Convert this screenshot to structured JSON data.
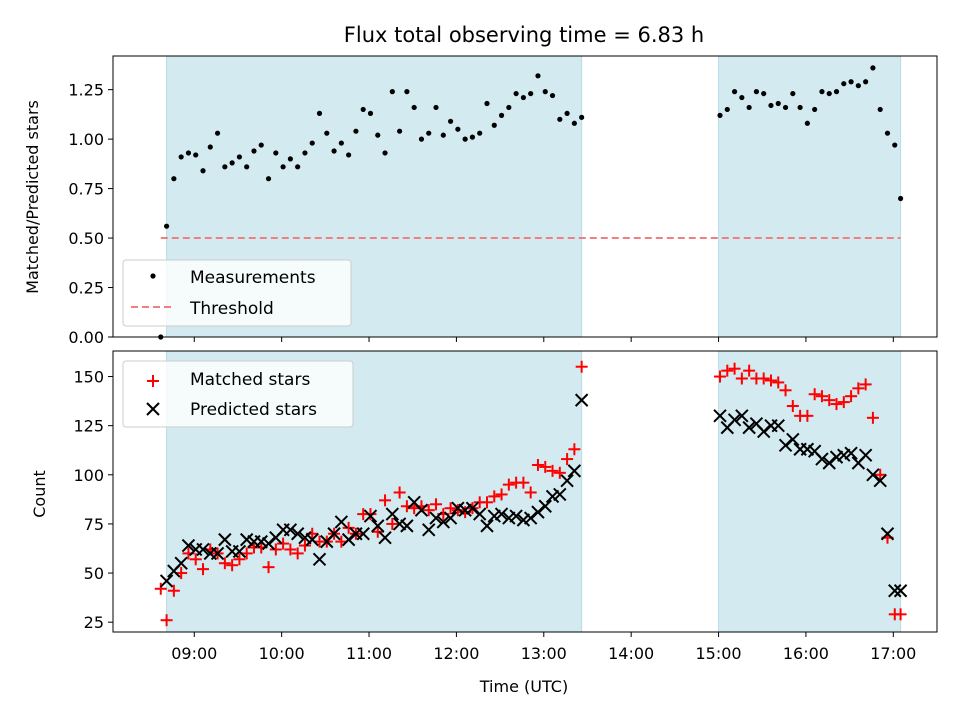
{
  "chart_data": {
    "title": "Flux total observing time = 6.83 h",
    "xlabel": "Time (UTC)",
    "x_ticks": [
      "09:00",
      "10:00",
      "11:00",
      "12:00",
      "13:00",
      "14:00",
      "15:00",
      "16:00",
      "17:00"
    ],
    "x_range_hours": [
      8.07,
      17.5
    ],
    "observing_windows": [
      {
        "start": "08:41",
        "end": "13:26"
      },
      {
        "start": "15:00",
        "end": "17:05"
      }
    ],
    "window_color": "#d3eaf0",
    "panels": [
      {
        "type": "scatter",
        "ylabel": "Matched/Predicted stars",
        "ylim": [
          0,
          1.42
        ],
        "yticks": [
          "0.00",
          "0.25",
          "0.50",
          "0.75",
          "1.00",
          "1.25"
        ],
        "threshold": {
          "y": 0.5,
          "x_start": "08:37",
          "x_end": "17:05",
          "color": "#f08080",
          "name": "Threshold"
        },
        "legend": {
          "placement": "lower-left",
          "entries": [
            "Measurements",
            "Threshold"
          ]
        },
        "series": [
          {
            "name": "Measurements",
            "color": "#000000",
            "marker": "dot",
            "x": [
              "08:37",
              "08:41",
              "08:46",
              "08:51",
              "08:56",
              "09:01",
              "09:06",
              "09:11",
              "09:16",
              "09:21",
              "09:26",
              "09:31",
              "09:36",
              "09:41",
              "09:46",
              "09:51",
              "09:56",
              "10:01",
              "10:06",
              "10:11",
              "10:16",
              "10:21",
              "10:26",
              "10:31",
              "10:36",
              "10:41",
              "10:46",
              "10:51",
              "10:56",
              "11:01",
              "11:06",
              "11:11",
              "11:16",
              "11:21",
              "11:26",
              "11:31",
              "11:36",
              "11:41",
              "11:46",
              "11:51",
              "11:56",
              "12:01",
              "12:06",
              "12:11",
              "12:16",
              "12:21",
              "12:26",
              "12:31",
              "12:36",
              "12:41",
              "12:46",
              "12:51",
              "12:56",
              "13:01",
              "13:06",
              "13:11",
              "13:16",
              "13:21",
              "13:26",
              "15:01",
              "15:06",
              "15:11",
              "15:16",
              "15:21",
              "15:26",
              "15:31",
              "15:36",
              "15:41",
              "15:46",
              "15:51",
              "15:56",
              "16:01",
              "16:06",
              "16:11",
              "16:16",
              "16:21",
              "16:26",
              "16:31",
              "16:36",
              "16:41",
              "16:46",
              "16:51",
              "16:56",
              "17:01",
              "17:05"
            ],
            "y": [
              0.0,
              0.56,
              0.8,
              0.91,
              0.93,
              0.92,
              0.84,
              0.96,
              1.03,
              0.86,
              0.88,
              0.91,
              0.86,
              0.94,
              0.97,
              0.8,
              0.93,
              0.86,
              0.9,
              0.86,
              0.93,
              0.98,
              1.13,
              1.03,
              0.94,
              0.98,
              0.92,
              1.04,
              1.15,
              1.13,
              1.02,
              0.93,
              1.24,
              1.04,
              1.24,
              1.16,
              1.0,
              1.03,
              1.16,
              1.02,
              1.09,
              1.05,
              1.0,
              1.01,
              1.03,
              1.18,
              1.07,
              1.12,
              1.16,
              1.23,
              1.21,
              1.23,
              1.32,
              1.24,
              1.22,
              1.1,
              1.13,
              1.08,
              1.11,
              1.12,
              1.15,
              1.24,
              1.21,
              1.16,
              1.24,
              1.23,
              1.17,
              1.18,
              1.16,
              1.23,
              1.16,
              1.08,
              1.15,
              1.24,
              1.23,
              1.24,
              1.28,
              1.29,
              1.27,
              1.29,
              1.36,
              1.15,
              1.03,
              0.97,
              0.7
            ]
          }
        ]
      },
      {
        "type": "scatter",
        "ylabel": "Count",
        "ylim": [
          20,
          163
        ],
        "yticks": [
          "25",
          "50",
          "75",
          "100",
          "125",
          "150"
        ],
        "legend": {
          "placement": "upper-left",
          "entries": [
            "Matched stars",
            "Predicted stars"
          ]
        },
        "series": [
          {
            "name": "Matched stars",
            "color": "#ff0000",
            "marker": "plus",
            "x": [
              "08:37",
              "08:41",
              "08:46",
              "08:51",
              "08:56",
              "09:01",
              "09:06",
              "09:11",
              "09:16",
              "09:21",
              "09:26",
              "09:31",
              "09:36",
              "09:41",
              "09:46",
              "09:51",
              "09:56",
              "10:01",
              "10:06",
              "10:11",
              "10:16",
              "10:21",
              "10:26",
              "10:31",
              "10:36",
              "10:41",
              "10:46",
              "10:51",
              "10:56",
              "11:01",
              "11:06",
              "11:11",
              "11:16",
              "11:21",
              "11:26",
              "11:31",
              "11:36",
              "11:41",
              "11:46",
              "11:51",
              "11:56",
              "12:01",
              "12:06",
              "12:11",
              "12:16",
              "12:21",
              "12:26",
              "12:31",
              "12:36",
              "12:41",
              "12:46",
              "12:51",
              "12:56",
              "13:01",
              "13:06",
              "13:11",
              "13:16",
              "13:21",
              "13:26",
              "15:01",
              "15:06",
              "15:11",
              "15:16",
              "15:21",
              "15:26",
              "15:31",
              "15:36",
              "15:41",
              "15:46",
              "15:51",
              "15:56",
              "16:01",
              "16:06",
              "16:11",
              "16:16",
              "16:21",
              "16:26",
              "16:31",
              "16:36",
              "16:41",
              "16:46",
              "16:51",
              "16:56",
              "17:01",
              "17:05"
            ],
            "y": [
              42,
              26,
              41,
              50,
              60,
              57,
              52,
              62,
              60,
              55,
              54,
              57,
              60,
              63,
              63,
              53,
              62,
              65,
              62,
              60,
              64,
              70,
              66,
              66,
              70,
              66,
              73,
              70,
              80,
              80,
              71,
              87,
              75,
              91,
              84,
              83,
              84,
              82,
              85,
              80,
              83,
              82,
              81,
              83,
              86,
              86,
              89,
              90,
              95,
              96,
              96,
              91,
              105,
              104,
              102,
              101,
              108,
              113,
              155,
              150,
              153,
              154,
              149,
              153,
              149,
              149,
              148,
              147,
              143,
              135,
              130,
              130,
              141,
              140,
              138,
              136,
              137,
              140,
              144,
              146,
              129,
              100,
              68,
              29,
              29
            ],
            "y_note": "last value anchors near 29"
          },
          {
            "name": "Predicted stars",
            "color": "#000000",
            "marker": "x",
            "x": [
              "08:37",
              "08:41",
              "08:46",
              "08:51",
              "08:56",
              "09:01",
              "09:06",
              "09:11",
              "09:16",
              "09:21",
              "09:26",
              "09:31",
              "09:36",
              "09:41",
              "09:46",
              "09:51",
              "09:56",
              "10:01",
              "10:06",
              "10:11",
              "10:16",
              "10:21",
              "10:26",
              "10:31",
              "10:36",
              "10:41",
              "10:46",
              "10:51",
              "10:56",
              "11:01",
              "11:06",
              "11:11",
              "11:16",
              "11:21",
              "11:26",
              "11:31",
              "11:36",
              "11:41",
              "11:46",
              "11:51",
              "11:56",
              "12:01",
              "12:06",
              "12:11",
              "12:16",
              "12:21",
              "12:26",
              "12:31",
              "12:36",
              "12:41",
              "12:46",
              "12:51",
              "12:56",
              "13:01",
              "13:06",
              "13:11",
              "13:16",
              "13:21",
              "13:26",
              "15:01",
              "15:06",
              "15:11",
              "15:16",
              "15:21",
              "15:26",
              "15:31",
              "15:36",
              "15:41",
              "15:46",
              "15:51",
              "15:56",
              "16:01",
              "16:06",
              "16:11",
              "16:16",
              "16:21",
              "16:26",
              "16:31",
              "16:36",
              "16:41",
              "16:46",
              "16:51",
              "16:56",
              "17:01",
              "17:05"
            ],
            "y": [
              null,
              46,
              51,
              55,
              64,
              62,
              62,
              60,
              60,
              67,
              61,
              61,
              67,
              66,
              66,
              65,
              68,
              72,
              72,
              70,
              68,
              67,
              57,
              66,
              70,
              76,
              67,
              70,
              70,
              79,
              74,
              68,
              80,
              75,
              74,
              86,
              82,
              72,
              78,
              76,
              78,
              83,
              82,
              83,
              80,
              74,
              79,
              80,
              78,
              79,
              77,
              78,
              81,
              84,
              89,
              90,
              97,
              102,
              138,
              130,
              124,
              128,
              130,
              124,
              126,
              122,
              125,
              125,
              115,
              118,
              113,
              113,
              112,
              108,
              106,
              109,
              110,
              111,
              106,
              110,
              100,
              97,
              70,
              41,
              41
            ]
          }
        ]
      }
    ]
  }
}
